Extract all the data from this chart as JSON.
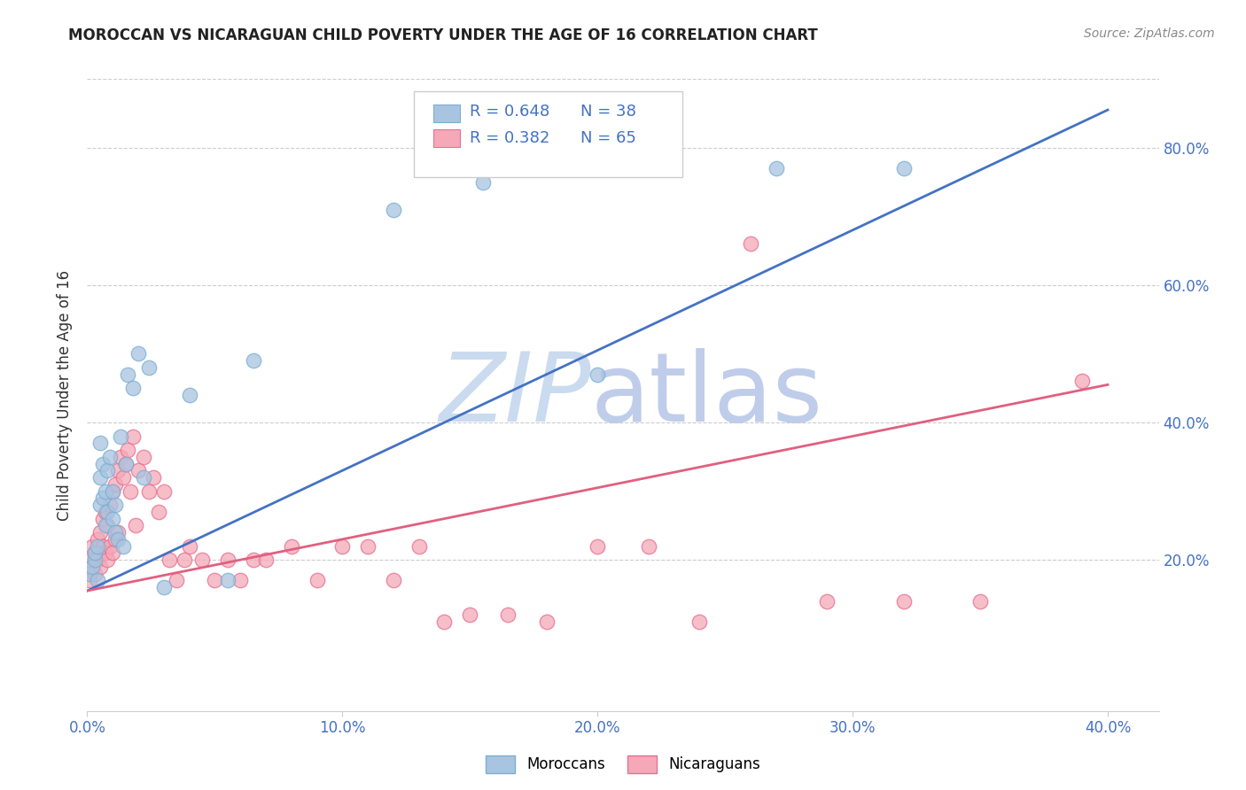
{
  "title": "MOROCCAN VS NICARAGUAN CHILD POVERTY UNDER THE AGE OF 16 CORRELATION CHART",
  "source": "Source: ZipAtlas.com",
  "ylabel": "Child Poverty Under the Age of 16",
  "xlim": [
    0.0,
    0.42
  ],
  "ylim": [
    -0.02,
    0.9
  ],
  "blue_color": "#A8C4E0",
  "pink_color": "#F4A8B8",
  "blue_edge_color": "#7BAFD4",
  "pink_edge_color": "#E87090",
  "blue_line_color": "#4472C4",
  "pink_line_color": "#E06080",
  "legend_text_color": "#4472C4",
  "tick_color": "#4472C4",
  "watermark_zip_color": "#C8D8F0",
  "watermark_atlas_color": "#C8D0E8",
  "moroccan_x": [
    0.001,
    0.002,
    0.003,
    0.003,
    0.004,
    0.004,
    0.005,
    0.005,
    0.005,
    0.006,
    0.006,
    0.007,
    0.007,
    0.008,
    0.008,
    0.009,
    0.01,
    0.01,
    0.011,
    0.011,
    0.012,
    0.013,
    0.014,
    0.015,
    0.016,
    0.018,
    0.02,
    0.022,
    0.024,
    0.03,
    0.04,
    0.055,
    0.065,
    0.12,
    0.155,
    0.2,
    0.27,
    0.32
  ],
  "moroccan_y": [
    0.18,
    0.19,
    0.2,
    0.21,
    0.17,
    0.22,
    0.28,
    0.32,
    0.37,
    0.29,
    0.34,
    0.25,
    0.3,
    0.33,
    0.27,
    0.35,
    0.3,
    0.26,
    0.24,
    0.28,
    0.23,
    0.38,
    0.22,
    0.34,
    0.47,
    0.45,
    0.5,
    0.32,
    0.48,
    0.16,
    0.44,
    0.17,
    0.49,
    0.71,
    0.75,
    0.47,
    0.77,
    0.77
  ],
  "nicaraguan_x": [
    0.001,
    0.001,
    0.002,
    0.002,
    0.003,
    0.003,
    0.004,
    0.004,
    0.005,
    0.005,
    0.006,
    0.006,
    0.007,
    0.007,
    0.008,
    0.008,
    0.009,
    0.009,
    0.01,
    0.01,
    0.011,
    0.011,
    0.012,
    0.012,
    0.013,
    0.014,
    0.015,
    0.016,
    0.017,
    0.018,
    0.019,
    0.02,
    0.022,
    0.024,
    0.026,
    0.028,
    0.03,
    0.032,
    0.035,
    0.038,
    0.04,
    0.045,
    0.05,
    0.055,
    0.06,
    0.065,
    0.07,
    0.08,
    0.09,
    0.1,
    0.11,
    0.12,
    0.13,
    0.14,
    0.15,
    0.165,
    0.18,
    0.2,
    0.22,
    0.24,
    0.26,
    0.29,
    0.32,
    0.35,
    0.39
  ],
  "nicaraguan_y": [
    0.17,
    0.2,
    0.19,
    0.22,
    0.18,
    0.21,
    0.2,
    0.23,
    0.19,
    0.24,
    0.22,
    0.26,
    0.21,
    0.27,
    0.2,
    0.25,
    0.22,
    0.28,
    0.21,
    0.3,
    0.23,
    0.31,
    0.33,
    0.24,
    0.35,
    0.32,
    0.34,
    0.36,
    0.3,
    0.38,
    0.25,
    0.33,
    0.35,
    0.3,
    0.32,
    0.27,
    0.3,
    0.2,
    0.17,
    0.2,
    0.22,
    0.2,
    0.17,
    0.2,
    0.17,
    0.2,
    0.2,
    0.22,
    0.17,
    0.22,
    0.22,
    0.17,
    0.22,
    0.11,
    0.12,
    0.12,
    0.11,
    0.22,
    0.22,
    0.11,
    0.66,
    0.14,
    0.14,
    0.14,
    0.46
  ],
  "blue_trend_x0": 0.0,
  "blue_trend_y0": 0.155,
  "blue_trend_x1": 0.4,
  "blue_trend_y1": 0.855,
  "pink_trend_x0": 0.0,
  "pink_trend_y0": 0.155,
  "pink_trend_x1": 0.4,
  "pink_trend_y1": 0.455
}
